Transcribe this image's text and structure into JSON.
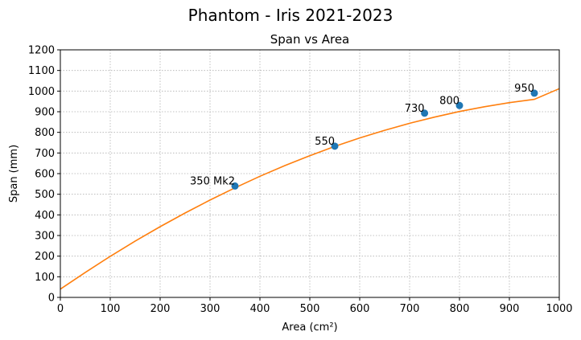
{
  "figure": {
    "title": "Phantom - Iris 2021-2023"
  },
  "chart_data": {
    "type": "scatter",
    "title": "Span vs Area",
    "xlabel": "Area (cm²)",
    "ylabel": "Span (mm)",
    "xlim": [
      0,
      1000
    ],
    "ylim": [
      0,
      1200
    ],
    "xticks": [
      0,
      100,
      200,
      300,
      400,
      500,
      600,
      700,
      800,
      900,
      1000
    ],
    "yticks": [
      0,
      100,
      200,
      300,
      400,
      500,
      600,
      700,
      800,
      900,
      1000,
      1100,
      1200
    ],
    "grid": true,
    "points": [
      {
        "label": "350 Mk2",
        "x": 350,
        "y": 540
      },
      {
        "label": "550",
        "x": 550,
        "y": 733
      },
      {
        "label": "730",
        "x": 730,
        "y": 893
      },
      {
        "label": "800",
        "x": 800,
        "y": 930
      },
      {
        "label": "950",
        "x": 950,
        "y": 990
      }
    ],
    "fit_curve": {
      "x": [
        0,
        50,
        100,
        150,
        200,
        250,
        300,
        350,
        400,
        450,
        500,
        550,
        600,
        650,
        700,
        750,
        800,
        850,
        900,
        950,
        1000
      ],
      "y": [
        40,
        121,
        199,
        273,
        343,
        409,
        472,
        531,
        587,
        639,
        687,
        732,
        773,
        810,
        844,
        874,
        901,
        924,
        944,
        960,
        1012
      ]
    },
    "colors": {
      "points": "#1f77b4",
      "fit": "#ff7f0e",
      "grid": "#b0b0b0"
    }
  }
}
